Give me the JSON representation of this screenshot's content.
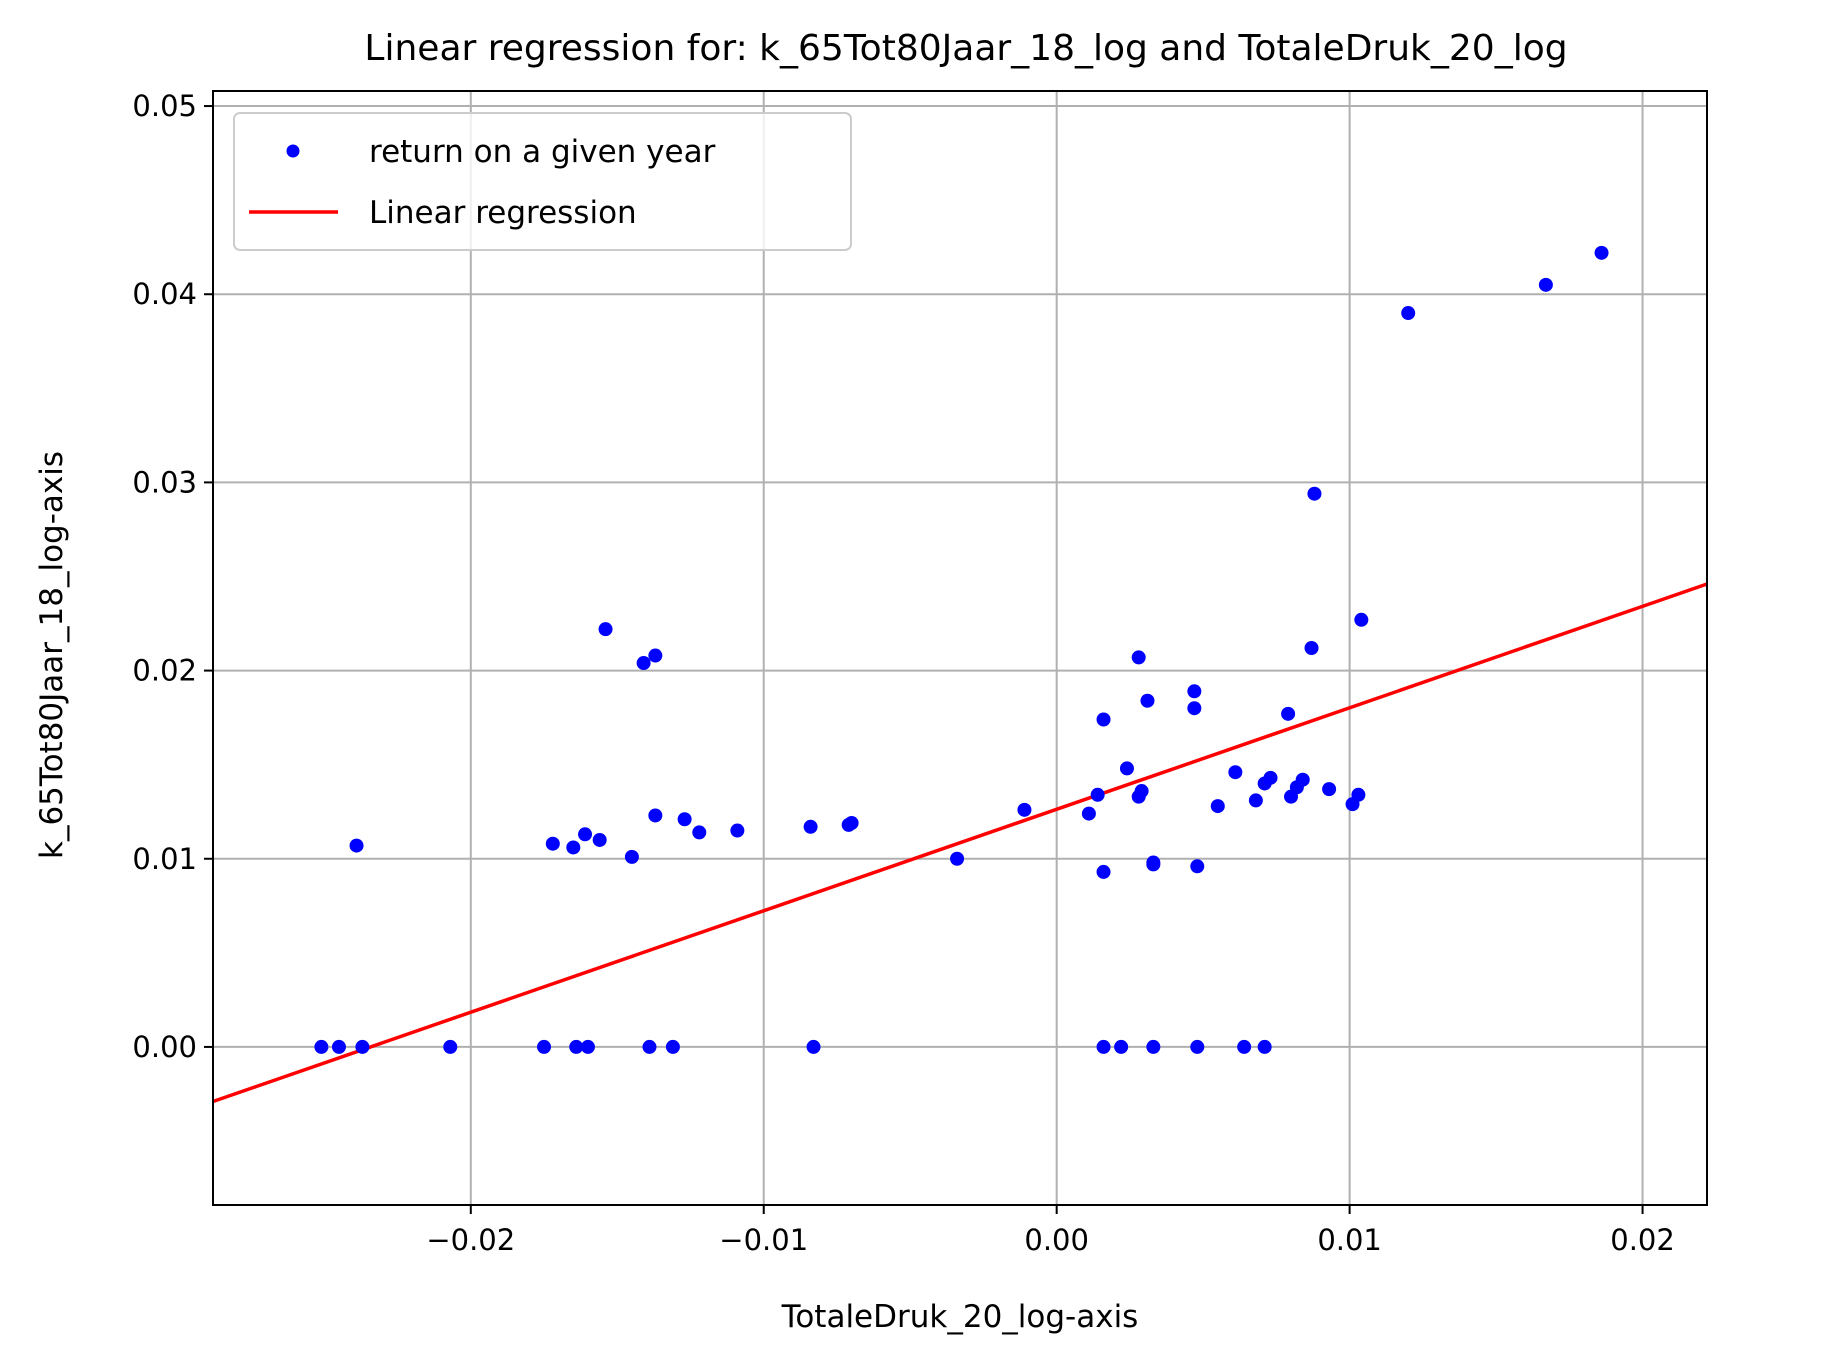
{
  "chart_data": {
    "type": "scatter",
    "title": "Linear regression for: k_65Tot80Jaar_18_log and TotaleDruk_20_log",
    "xlabel": "TotaleDruk_20_log-axis",
    "ylabel": "k_65Tot80Jaar_18_log-axis",
    "xlim": [
      -0.0288,
      0.0222
    ],
    "ylim": [
      -0.0084,
      0.0508
    ],
    "xticks": [
      -0.02,
      -0.01,
      0.0,
      0.01,
      0.02
    ],
    "xtick_labels": [
      "−0.02",
      "−0.01",
      "0.00",
      "0.01",
      "0.02"
    ],
    "yticks": [
      0.0,
      0.01,
      0.02,
      0.03,
      0.04,
      0.05
    ],
    "ytick_labels": [
      "0.00",
      "0.01",
      "0.02",
      "0.03",
      "0.04",
      "0.05"
    ],
    "grid": true,
    "legend_position": "top-left",
    "series": [
      {
        "name": "return on a given year",
        "kind": "scatter",
        "color": "#0000ff",
        "x": [
          -0.0251,
          -0.0245,
          -0.0237,
          -0.0207,
          -0.0175,
          -0.0164,
          -0.016,
          -0.0139,
          -0.0131,
          -0.0083,
          0.0016,
          0.0022,
          0.0033,
          0.0048,
          0.0064,
          0.0071,
          -0.0239,
          -0.0172,
          -0.0165,
          -0.0161,
          -0.0156,
          -0.0145,
          -0.0154,
          -0.0141,
          -0.0137,
          -0.0137,
          -0.0127,
          -0.0122,
          -0.0109,
          -0.0084,
          -0.0071,
          -0.007,
          -0.0034,
          -0.0011,
          0.0011,
          0.0014,
          0.0016,
          0.0016,
          0.0024,
          0.0028,
          0.0028,
          0.0029,
          0.0031,
          0.0033,
          0.0033,
          0.0047,
          0.0047,
          0.0048,
          0.0055,
          0.0061,
          0.0068,
          0.0071,
          0.0073,
          0.0079,
          0.008,
          0.0082,
          0.0084,
          0.0087,
          0.0088,
          0.0093,
          0.0101,
          0.0103,
          0.0104,
          0.012,
          0.0167,
          0.0186
        ],
        "y": [
          0.0,
          0.0,
          0.0,
          0.0,
          0.0,
          0.0,
          0.0,
          0.0,
          0.0,
          0.0,
          0.0,
          0.0,
          0.0,
          0.0,
          0.0,
          0.0,
          0.0107,
          0.0108,
          0.0106,
          0.0113,
          0.011,
          0.0101,
          0.0222,
          0.0204,
          0.0208,
          0.0123,
          0.0121,
          0.0114,
          0.0115,
          0.0117,
          0.0118,
          0.0119,
          0.01,
          0.0126,
          0.0124,
          0.0134,
          0.0174,
          0.0093,
          0.0148,
          0.0207,
          0.0133,
          0.0136,
          0.0184,
          0.0097,
          0.0098,
          0.018,
          0.0189,
          0.0096,
          0.0128,
          0.0146,
          0.0131,
          0.014,
          0.0143,
          0.0177,
          0.0133,
          0.0138,
          0.0142,
          0.0212,
          0.0294,
          0.0137,
          0.0129,
          0.0134,
          0.0227,
          0.039,
          0.0405,
          0.0422
        ]
      },
      {
        "name": "Linear regression",
        "kind": "line",
        "color": "#ff0000",
        "x": [
          -0.0288,
          0.0222
        ],
        "y": [
          -0.0029,
          0.0246
        ]
      }
    ]
  }
}
